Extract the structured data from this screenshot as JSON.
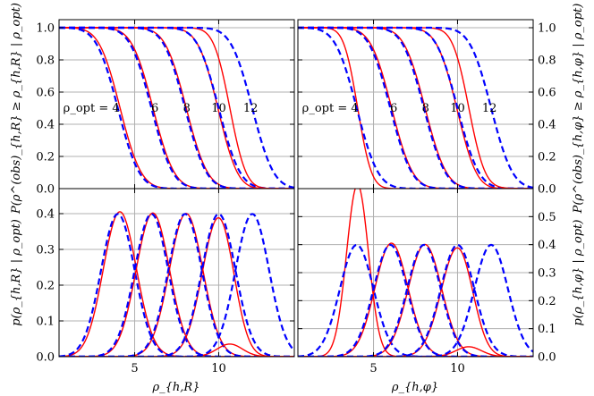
{
  "chart_data": [
    {
      "id": "top-left",
      "type": "line",
      "ylabel": "P(ρ^(obs)_{h,R} ≥ ρ_{h,R} | ρ_opt)",
      "xlim": [
        0.5,
        14.5
      ],
      "ylim": [
        0,
        1.05
      ],
      "yticks": [
        "0.0",
        "0.2",
        "0.4",
        "0.6",
        "0.8",
        "1.0"
      ],
      "ytick_values": [
        0,
        0.2,
        0.4,
        0.6,
        0.8,
        1.0
      ],
      "xtick_values": [
        5,
        10
      ],
      "grid": true,
      "annotation_prefix": "ρ_opt = 4",
      "annotation_labels": [
        "6",
        "8",
        "10",
        "12"
      ],
      "rho_opt": [
        4,
        6,
        8,
        10,
        12
      ],
      "series": [
        {
          "color": "#ff0000",
          "style": "solid",
          "kind": "survival_ncchi"
        },
        {
          "color": "#0000ff",
          "style": "dashed",
          "kind": "survival_gauss"
        }
      ]
    },
    {
      "id": "top-right",
      "type": "line",
      "ylabel": "P(ρ^(obs)_{h,φ} ≥ ρ_{h,φ} | ρ_opt)",
      "xlim": [
        0.5,
        14.5
      ],
      "ylim": [
        0,
        1.05
      ],
      "yticks": [
        "0.0",
        "0.2",
        "0.4",
        "0.6",
        "0.8",
        "1.0"
      ],
      "ytick_values": [
        0,
        0.2,
        0.4,
        0.6,
        0.8,
        1.0
      ],
      "xtick_values": [
        5,
        10
      ],
      "grid": true,
      "annotation_prefix": "ρ_opt = 4",
      "annotation_labels": [
        "6",
        "8",
        "10",
        "12"
      ],
      "rho_opt": [
        4,
        6,
        8,
        10,
        12
      ],
      "series": [
        {
          "color": "#ff0000",
          "style": "solid",
          "kind": "survival_ncchi"
        },
        {
          "color": "#0000ff",
          "style": "dashed",
          "kind": "survival_gauss"
        }
      ]
    },
    {
      "id": "bottom-left",
      "type": "line",
      "xlabel": "ρ_{h,R}",
      "ylabel": "p(ρ_{h,R} | ρ_opt)",
      "xlim": [
        0.5,
        14.5
      ],
      "ylim": [
        0,
        0.47
      ],
      "yticks": [
        "0.0",
        "0.1",
        "0.2",
        "0.3",
        "0.4"
      ],
      "ytick_values": [
        0,
        0.1,
        0.2,
        0.3,
        0.4
      ],
      "xticks": [
        "5",
        "10"
      ],
      "xtick_values": [
        5,
        10
      ],
      "grid": true,
      "rho_opt": [
        4,
        6,
        8,
        10,
        12
      ],
      "series": [
        {
          "color": "#ff0000",
          "style": "solid",
          "kind": "pdf_ncchi",
          "dof": 2
        },
        {
          "color": "#0000ff",
          "style": "dashed",
          "kind": "pdf_gauss",
          "sigma": 1.0
        }
      ]
    },
    {
      "id": "bottom-right",
      "type": "line",
      "xlabel": "ρ_{h,φ}",
      "ylabel": "p(ρ_{h,φ} | ρ_opt)",
      "xlim": [
        0.5,
        14.5
      ],
      "ylim": [
        0,
        0.6
      ],
      "yticks": [
        "0.0",
        "0.1",
        "0.2",
        "0.3",
        "0.4",
        "0.5"
      ],
      "ytick_values": [
        0,
        0.1,
        0.2,
        0.3,
        0.4,
        0.5
      ],
      "xticks": [
        "5",
        "10"
      ],
      "xtick_values": [
        5,
        10
      ],
      "grid": true,
      "rho_opt": [
        4,
        6,
        8,
        10,
        12
      ],
      "series": [
        {
          "color": "#ff0000",
          "style": "solid",
          "kind": "pdf_ncchi",
          "dof": 1.2
        },
        {
          "color": "#0000ff",
          "style": "dashed",
          "kind": "pdf_gauss",
          "sigma": 1.0
        }
      ]
    }
  ]
}
